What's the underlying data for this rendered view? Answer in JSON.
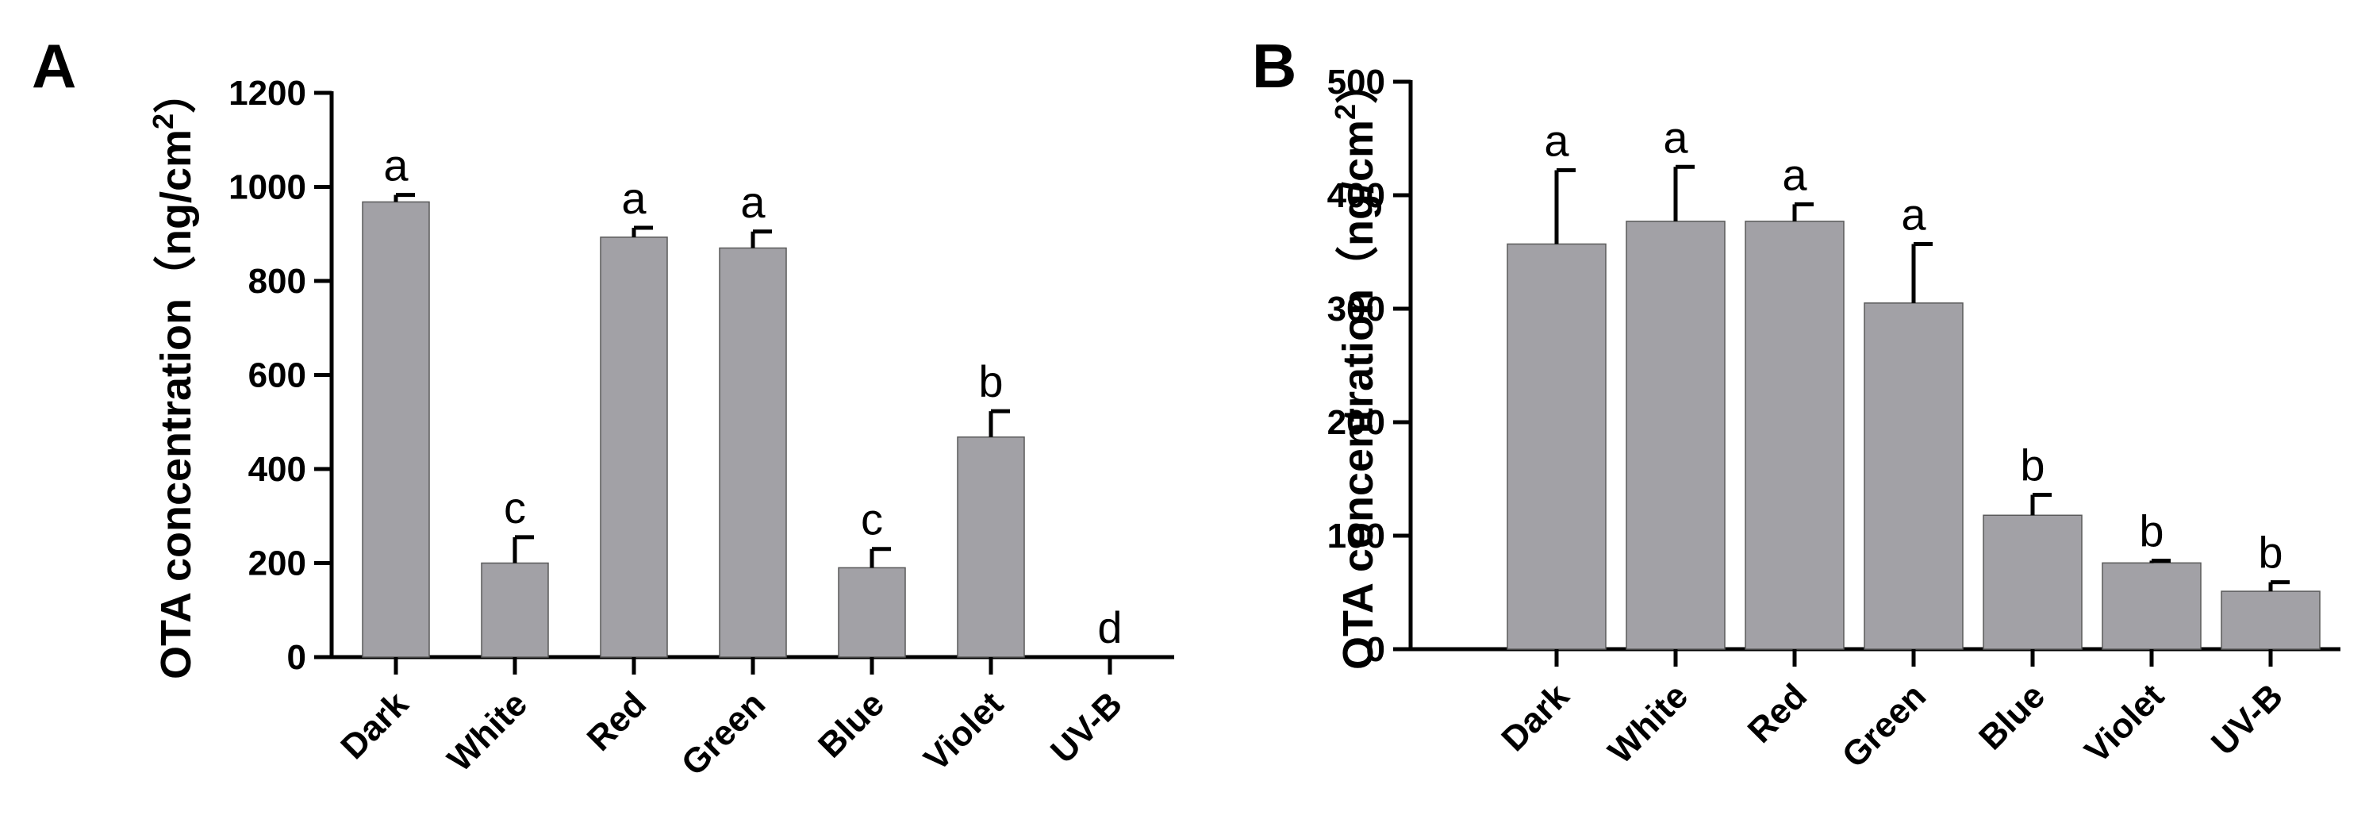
{
  "colors": {
    "bar": "#a2a1a6",
    "axis": "#000000"
  },
  "chart_data": [
    {
      "type": "bar",
      "panel": "A",
      "ylabel": "OTA concentration（ng/cm",
      "ylabel_sup": "2",
      "ylabel_close": "）",
      "ylim": [
        0,
        1200
      ],
      "yticks": [
        0,
        200,
        400,
        600,
        800,
        1000,
        1200
      ],
      "categories": [
        "Dark",
        "White",
        "Red",
        "Green",
        "Blue",
        "Violet",
        "UV-B"
      ],
      "values": [
        968,
        200,
        893,
        870,
        190,
        468,
        0
      ],
      "errors": [
        15,
        55,
        20,
        35,
        40,
        55,
        0
      ],
      "significance": [
        "a",
        "c",
        "a",
        "a",
        "c",
        "b",
        "d"
      ]
    },
    {
      "type": "bar",
      "panel": "B",
      "ylabel": "OTA concentration（ng/cm",
      "ylabel_sup": "2",
      "ylabel_close": "）",
      "ylim": [
        0,
        500
      ],
      "yticks": [
        0,
        100,
        200,
        300,
        400,
        500
      ],
      "categories": [
        "Dark",
        "White",
        "Red",
        "Green",
        "Blue",
        "Violet",
        "UV-B"
      ],
      "values": [
        357,
        377,
        377,
        305,
        118,
        76,
        51
      ],
      "errors": [
        65,
        48,
        15,
        52,
        18,
        2,
        8
      ],
      "significance": [
        "a",
        "a",
        "a",
        "a",
        "b",
        "b",
        "b"
      ]
    }
  ]
}
